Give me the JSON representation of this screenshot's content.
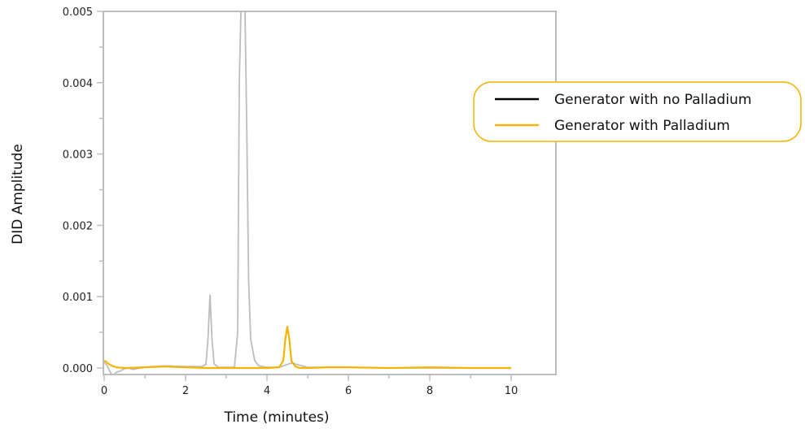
{
  "chart_data": {
    "type": "line",
    "xlabel": "Time (minutes)",
    "ylabel": "DID Amplitude",
    "xlim": [
      0,
      11.1
    ],
    "ylim": [
      -0.0001,
      0.005
    ],
    "x_ticks": [
      0,
      2,
      4,
      6,
      8,
      10
    ],
    "x_tick_labels": [
      "0",
      "2",
      "4",
      "6",
      "8",
      "10"
    ],
    "y_ticks": [
      0.0,
      0.001,
      0.002,
      0.003,
      0.004,
      0.005
    ],
    "y_tick_labels": [
      "0.000",
      "0.001",
      "0.002",
      "0.003",
      "0.004",
      "0.005"
    ],
    "grid": false,
    "legend_position": "right",
    "series": [
      {
        "name": "Generator with no Palladium",
        "legend_color": "#000000",
        "line_color": "#bdbdbd",
        "x": [
          0.0,
          0.05,
          0.1,
          0.15,
          0.2,
          0.25,
          0.3,
          0.4,
          0.5,
          0.6,
          0.7,
          0.8,
          0.9,
          1.0,
          1.2,
          1.5,
          2.0,
          2.4,
          2.5,
          2.55,
          2.6,
          2.65,
          2.7,
          2.8,
          3.0,
          3.2,
          3.28,
          3.32,
          3.36,
          3.4,
          3.46,
          3.5,
          3.55,
          3.6,
          3.7,
          3.8,
          4.0,
          4.3,
          4.6,
          5.0,
          6.0,
          7.0,
          8.0,
          9.0,
          10.0
        ],
        "y": [
          8e-05,
          5e-05,
          0.0,
          -6e-05,
          -0.0001,
          -9e-05,
          -6e-05,
          -4e-05,
          -1e-05,
          0.0,
          -2e-05,
          -1e-05,
          0.0,
          1e-05,
          2e-05,
          3e-05,
          2e-05,
          2e-05,
          5e-05,
          0.0004,
          0.00102,
          0.0004,
          6e-05,
          1e-05,
          1e-05,
          1e-05,
          0.0005,
          0.004,
          0.005,
          0.005,
          0.005,
          0.0035,
          0.0012,
          0.0004,
          0.0001,
          3e-05,
          1e-05,
          1e-05,
          7e-05,
          1e-05,
          1e-05,
          0.0,
          0.0,
          0.0,
          0.0
        ]
      },
      {
        "name": "Generator with Palladium",
        "legend_color": "#f4b400",
        "line_color": "#f4b400",
        "x": [
          0.0,
          0.05,
          0.1,
          0.2,
          0.3,
          0.5,
          1.0,
          1.5,
          2.0,
          2.5,
          3.0,
          3.5,
          4.0,
          4.3,
          4.4,
          4.45,
          4.5,
          4.55,
          4.6,
          4.7,
          4.8,
          5.0,
          5.5,
          6.0,
          7.0,
          8.0,
          9.0,
          10.0
        ],
        "y": [
          0.0001,
          9e-05,
          6e-05,
          3e-05,
          1e-05,
          0.0,
          1e-05,
          2e-05,
          1e-05,
          0.0,
          0.0,
          0.0,
          0.0,
          1e-05,
          0.0001,
          0.0004,
          0.00058,
          0.0004,
          0.0001,
          2e-05,
          0.0,
          0.0,
          1e-05,
          1e-05,
          0.0,
          1e-05,
          0.0,
          0.0
        ]
      }
    ]
  }
}
